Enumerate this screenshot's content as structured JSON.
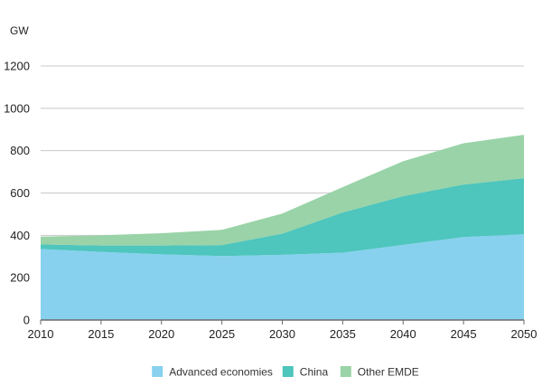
{
  "chart_data": {
    "type": "area",
    "stacked": true,
    "unit_label": "GW",
    "x": [
      2010,
      2015,
      2020,
      2025,
      2030,
      2035,
      2040,
      2045,
      2050
    ],
    "ylim": [
      0,
      1200
    ],
    "y_ticks": [
      0,
      200,
      400,
      600,
      800,
      1000,
      1200
    ],
    "grid": true,
    "legend_position": "bottom",
    "series": [
      {
        "name": "Advanced economies",
        "color": "#87d1ee",
        "values": [
          335,
          322,
          310,
          302,
          308,
          318,
          355,
          392,
          405
        ]
      },
      {
        "name": "China",
        "color": "#4ec5bd",
        "values": [
          22,
          30,
          42,
          52,
          100,
          190,
          230,
          248,
          265
        ]
      },
      {
        "name": "Other EMDE",
        "color": "#99d3a7",
        "values": [
          37,
          48,
          58,
          72,
          95,
          120,
          165,
          195,
          205
        ]
      }
    ]
  }
}
